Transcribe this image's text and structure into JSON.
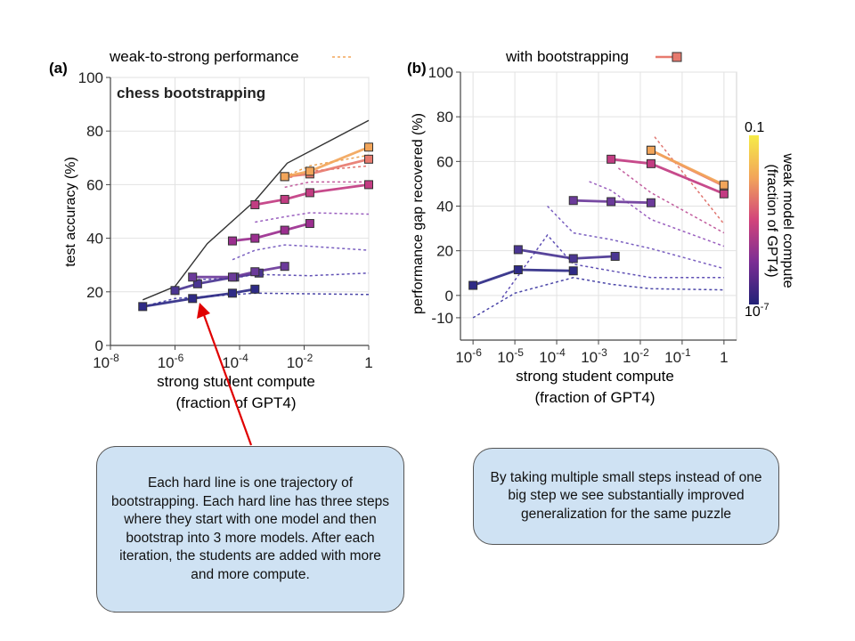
{
  "colors": {
    "traj_low": "#2e2a86",
    "traj_mid": "#6b3a9a",
    "traj_mid2": "#9b2e8f",
    "traj_high": "#c23c82",
    "traj_top": "#e77a6e",
    "traj_peak": "#f2a55a",
    "ceiling": "#333333",
    "weak_dotted": "#7a6bc8",
    "arrow": "#e00000",
    "callout_bg": "#cfe2f3"
  },
  "legend_a": {
    "label": "weak-to-strong performance"
  },
  "legend_b": {
    "label": "with bootstrapping"
  },
  "colorbar": {
    "top": "0.1",
    "bottom": "10",
    "bottom_exp": "-7",
    "title_line1": "weak model compute",
    "title_line2": "(fraction of GPT4)"
  },
  "callouts": {
    "left": "Each hard line is one trajectory of bootstrapping. Each hard line has three steps where they start with one model and then bootstrap into 3 more models. After each iteration, the students are added with more and more compute.",
    "right": "By taking multiple small steps instead of one big step we see substantially improved generalization for the same puzzle"
  },
  "chart_data": [
    {
      "panel": "(a)",
      "type": "line",
      "title": "chess bootstrapping",
      "xlabel": "strong student compute\n(fraction of GPT4)",
      "ylabel": "test accuracy (%)",
      "xscale": "log",
      "xlim": [
        1e-08,
        1
      ],
      "ylim": [
        0,
        100
      ],
      "xticks": [
        "10^-8",
        "10^-6",
        "10^-4",
        "10^-2",
        "1"
      ],
      "yticks": [
        0,
        20,
        40,
        60,
        80,
        100
      ],
      "ceiling": {
        "x": [
          1e-07,
          1e-06,
          1e-05,
          0.0003,
          0.003,
          1
        ],
        "y": [
          17,
          22,
          38,
          54,
          68,
          84
        ]
      },
      "trajectories": [
        {
          "x": [
            1e-07,
            3.5e-06,
            6e-05,
            0.0003
          ],
          "y": [
            14.5,
            17.5,
            19.5,
            21
          ],
          "color": "#2e2a86"
        },
        {
          "x": [
            1e-06,
            5e-06,
            7e-05,
            0.0004
          ],
          "y": [
            20.5,
            23,
            25.5,
            27
          ]
        },
        {
          "x": [
            3.5e-06,
            6e-05,
            0.0003,
            0.0025
          ],
          "y": [
            25.5,
            25.5,
            27.5,
            29.5
          ],
          "color": "#6b3a9a"
        },
        {
          "x": [
            6e-05,
            0.0003,
            0.0025,
            0.015
          ],
          "y": [
            39,
            40,
            43,
            45.5
          ],
          "color": "#9b2e8f"
        },
        {
          "x": [
            0.0003,
            0.0025,
            0.015,
            1
          ],
          "y": [
            52.5,
            54.5,
            57,
            60
          ],
          "color": "#c23c82"
        },
        {
          "x": [
            0.0025,
            0.015,
            1
          ],
          "y": [
            63,
            64,
            69.5
          ],
          "color": "#e77a6e"
        },
        {
          "x": [
            0.0025,
            0.015,
            1
          ],
          "y": [
            63,
            65,
            74
          ],
          "color": "#f2a55a"
        }
      ],
      "weak_to_strong": [
        {
          "x": [
            1e-07,
            1e-06,
            0.0003,
            1
          ],
          "y": [
            14.5,
            17.5,
            19.5,
            19
          ]
        },
        {
          "x": [
            3.5e-06,
            6e-05,
            0.0003,
            0.015,
            1
          ],
          "y": [
            24.5,
            25,
            26.5,
            26,
            27
          ]
        },
        {
          "x": [
            6e-05,
            0.0003,
            0.0025,
            0.015,
            1
          ],
          "y": [
            32,
            35.5,
            37.5,
            37,
            35.5
          ]
        },
        {
          "x": [
            0.0003,
            0.0025,
            0.015,
            1
          ],
          "y": [
            46,
            48,
            49.5,
            49
          ]
        },
        {
          "x": [
            0.0025,
            0.015,
            1
          ],
          "y": [
            59,
            61,
            61
          ]
        },
        {
          "x": [
            0.0025,
            0.015,
            1
          ],
          "y": [
            62,
            65,
            67
          ]
        },
        {
          "x": [
            0.0025,
            0.015,
            1
          ],
          "y": [
            63,
            67,
            71
          ]
        }
      ]
    },
    {
      "panel": "(b)",
      "type": "line",
      "xlabel": "strong student compute\n(fraction of GPT4)",
      "ylabel": "performance gap recovered (%)",
      "xscale": "log",
      "xlim": [
        5e-07,
        2
      ],
      "ylim": [
        -20,
        100
      ],
      "xticks": [
        "10^-6",
        "10^-5",
        "10^-4",
        "10^-3",
        "10^-2",
        "10^-1",
        "1"
      ],
      "yticks": [
        -10,
        0,
        20,
        40,
        60,
        80,
        100
      ],
      "trajectories": [
        {
          "x": [
            1e-06,
            1.2e-05,
            0.00025
          ],
          "y": [
            4.5,
            11.5,
            11
          ]
        },
        {
          "x": [
            1.2e-05,
            0.00025,
            0.0025
          ],
          "y": [
            20.5,
            16.5,
            17.5
          ]
        },
        {
          "x": [
            0.00025,
            0.002,
            0.018
          ],
          "y": [
            42.5,
            42,
            41.5
          ]
        },
        {
          "x": [
            0.002,
            0.018,
            1
          ],
          "y": [
            61,
            59,
            45.5
          ]
        },
        {
          "x": [
            0.018,
            1
          ],
          "y": [
            65,
            49
          ]
        },
        {
          "x": [
            0.018,
            1
          ],
          "y": [
            65,
            49.5
          ]
        }
      ],
      "weak_to_strong": [
        {
          "x": [
            1e-06,
            1e-05,
            0.00025,
            0.002,
            0.018,
            1
          ],
          "y": [
            -10,
            1,
            8,
            5,
            3,
            2.5
          ]
        },
        {
          "x": [
            5e-06,
            6e-05,
            0.00025,
            0.002,
            0.018,
            1
          ],
          "y": [
            -1,
            27,
            14,
            11,
            8,
            8
          ]
        },
        {
          "x": [
            6e-05,
            0.00025,
            0.002,
            0.018,
            1
          ],
          "y": [
            40,
            28,
            25,
            21,
            12
          ]
        },
        {
          "x": [
            0.0006,
            0.002,
            0.018,
            1
          ],
          "y": [
            51,
            47,
            34,
            22
          ]
        },
        {
          "x": [
            0.003,
            0.018,
            1
          ],
          "y": [
            57,
            46,
            28
          ]
        },
        {
          "x": [
            0.022,
            1
          ],
          "y": [
            71,
            32
          ]
        }
      ]
    }
  ]
}
